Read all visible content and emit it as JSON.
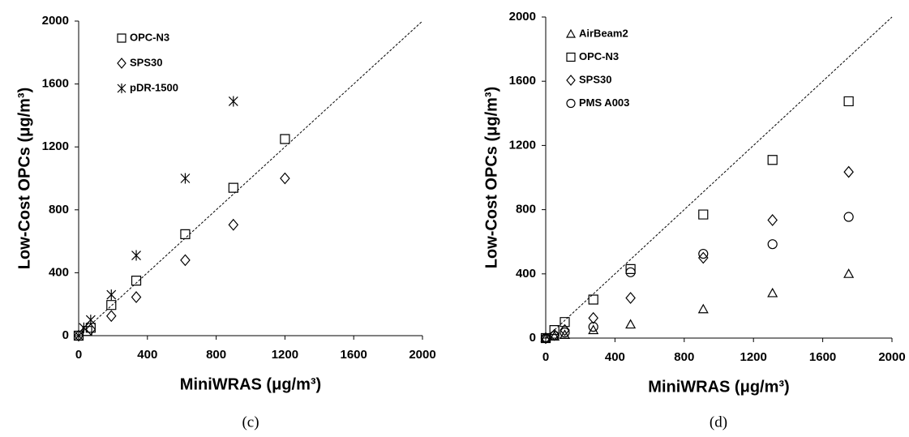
{
  "chart_data": [
    {
      "type": "scatter",
      "caption": "(c)",
      "xlabel": "MiniWRAS (μg/m³)",
      "ylabel": "Low-Cost OPCs (μg/m³)",
      "xlim": [
        0,
        2000
      ],
      "ylim": [
        0,
        2000
      ],
      "xticks": [
        0,
        400,
        800,
        1200,
        1600,
        2000
      ],
      "yticks": [
        0,
        400,
        800,
        1200,
        1600,
        2000
      ],
      "series": [
        {
          "name": "OPC-N3",
          "marker": "square",
          "color": "#000000",
          "x": [
            0,
            50,
            70,
            190,
            335,
            620,
            900,
            1200
          ],
          "values": [
            0,
            30,
            50,
            195,
            350,
            645,
            940,
            1250
          ]
        },
        {
          "name": "SPS30",
          "marker": "diamond",
          "color": "#000000",
          "x": [
            0,
            70,
            190,
            335,
            620,
            900,
            1200
          ],
          "values": [
            0,
            40,
            125,
            245,
            480,
            705,
            1000
          ]
        },
        {
          "name": "pDR-1500",
          "marker": "star",
          "color": "#000000",
          "x": [
            0,
            30,
            70,
            190,
            335,
            620,
            900
          ],
          "values": [
            0,
            50,
            100,
            260,
            510,
            1000,
            1490
          ]
        }
      ]
    },
    {
      "type": "scatter",
      "caption": "(d)",
      "xlabel": "MiniWRAS (μg/m³)",
      "ylabel": "Low-Cost OPCs (μg/m³)",
      "xlim": [
        0,
        2000
      ],
      "ylim": [
        0,
        2000
      ],
      "xticks": [
        0,
        400,
        800,
        1200,
        1600,
        2000
      ],
      "yticks": [
        0,
        400,
        800,
        1200,
        1600,
        2000
      ],
      "series": [
        {
          "name": "AirBeam2",
          "marker": "triangle",
          "color": "#000000",
          "x": [
            0,
            50,
            110,
            275,
            490,
            910,
            1310,
            1750
          ],
          "values": [
            0,
            10,
            20,
            50,
            85,
            180,
            280,
            400
          ]
        },
        {
          "name": "OPC-N3",
          "marker": "square",
          "color": "#000000",
          "x": [
            0,
            50,
            110,
            275,
            490,
            910,
            1310,
            1750
          ],
          "values": [
            0,
            50,
            100,
            240,
            430,
            770,
            1110,
            1475
          ]
        },
        {
          "name": "SPS30",
          "marker": "diamond",
          "color": "#000000",
          "x": [
            0,
            50,
            110,
            275,
            490,
            910,
            1310,
            1750
          ],
          "values": [
            0,
            20,
            50,
            125,
            250,
            500,
            735,
            1035
          ]
        },
        {
          "name": "PMS A003",
          "marker": "circle",
          "color": "#000000",
          "x": [
            0,
            50,
            110,
            275,
            490,
            910,
            1310,
            1750
          ],
          "values": [
            0,
            15,
            35,
            70,
            410,
            525,
            585,
            755
          ]
        }
      ]
    }
  ]
}
